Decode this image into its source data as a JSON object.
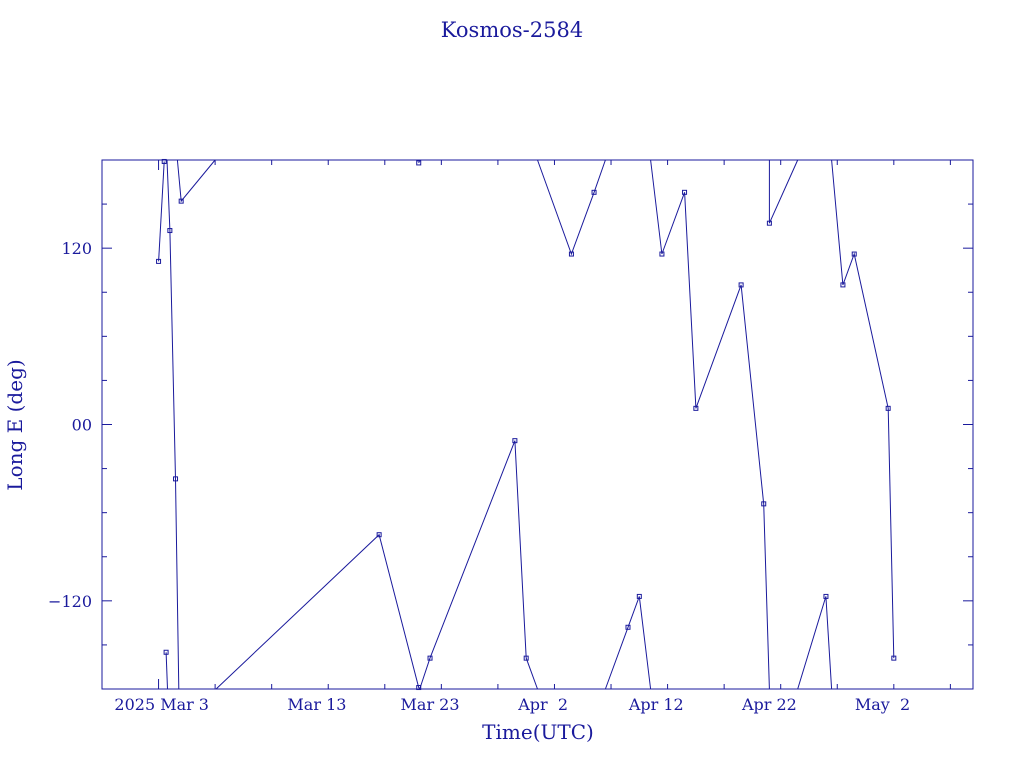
{
  "chart_data": {
    "type": "line",
    "title": "Kosmos-2584",
    "xlabel": "Time(UTC)",
    "ylabel": "Long E (deg)",
    "ylim": [
      -180,
      180
    ],
    "y_ticks": [
      120,
      0,
      -120
    ],
    "y_tick_labels": [
      "120",
      "00",
      "−120"
    ],
    "x_ticks": [
      "2025-02-27",
      "2025-03-03",
      "2025-03-13",
      "2025-03-23",
      "2025-04-02",
      "2025-04-12",
      "2025-04-22",
      "2025-05-02"
    ],
    "x_tick_labels": [
      "2025 Mar",
      "3",
      "Mar 13",
      "Mar 23",
      "Apr  2",
      "Apr 12",
      "Apr 22",
      "May  2"
    ],
    "xlim": [
      "2025-02-22",
      "2025-05-10"
    ],
    "grid": false,
    "color": "#1a1a9c",
    "series": [
      {
        "segments": [
          [
            [
              "2025-02-27 00:00",
              111
            ],
            [
              "2025-02-27 12:00",
              179
            ]
          ],
          [
            [
              "2025-02-27 16:00",
              -155
            ],
            [
              "2025-02-27 19:00",
              -180
            ]
          ],
          [
            [
              "2025-02-27 18:00",
              180
            ],
            [
              "2025-02-28 00:00",
              132
            ],
            [
              "2025-02-28 12:00",
              -37
            ],
            [
              "2025-02-28 19:00",
              -180
            ]
          ],
          [
            [
              "2025-02-28 16:00",
              180
            ],
            [
              "2025-03-01 00:00",
              152
            ],
            [
              "2025-03-04 00:00",
              180
            ]
          ],
          [
            [
              "2025-03-04 02:00",
              -180
            ],
            [
              "2025-03-18 12:00",
              -75
            ],
            [
              "2025-03-22 00:00",
              -179
            ],
            [
              "2025-03-22 02:00",
              -180
            ]
          ],
          [
            [
              "2025-03-22 00:00",
              178
            ],
            [
              "2025-03-22 02:00",
              180
            ]
          ],
          [
            [
              "2025-03-22 02:00",
              -180
            ],
            [
              "2025-03-23 00:00",
              -159
            ],
            [
              "2025-03-30 12:00",
              -11
            ],
            [
              "2025-03-31 12:00",
              -159
            ],
            [
              "2025-04-01 12:00",
              -180
            ]
          ],
          [
            [
              "2025-04-01 12:00",
              180
            ],
            [
              "2025-04-04 12:00",
              116
            ],
            [
              "2025-04-06 12:00",
              158
            ],
            [
              "2025-04-07 12:00",
              180
            ]
          ],
          [
            [
              "2025-04-07 12:00",
              -180
            ],
            [
              "2025-04-09 12:00",
              -138
            ],
            [
              "2025-04-10 12:00",
              -117
            ],
            [
              "2025-04-11 12:00",
              -180
            ]
          ],
          [
            [
              "2025-04-11 12:00",
              180
            ],
            [
              "2025-04-12 12:00",
              116
            ],
            [
              "2025-04-14 12:00",
              158
            ],
            [
              "2025-04-15 12:00",
              11
            ],
            [
              "2025-04-19 12:00",
              95
            ],
            [
              "2025-04-21 12:00",
              -54
            ],
            [
              "2025-04-22 00:00",
              -180
            ]
          ],
          [
            [
              "2025-04-22 00:00",
              180
            ],
            [
              "2025-04-22 00:00",
              137
            ],
            [
              "2025-04-24 12:00",
              180
            ]
          ],
          [
            [
              "2025-04-24 12:00",
              -180
            ],
            [
              "2025-04-27 00:00",
              -117
            ],
            [
              "2025-04-27 12:00",
              -180
            ]
          ],
          [
            [
              "2025-04-27 12:00",
              180
            ],
            [
              "2025-04-28 12:00",
              95
            ],
            [
              "2025-04-29 12:00",
              116
            ],
            [
              "2025-05-02 12:00",
              11
            ],
            [
              "2025-05-03 00:00",
              -159
            ]
          ]
        ]
      }
    ]
  }
}
